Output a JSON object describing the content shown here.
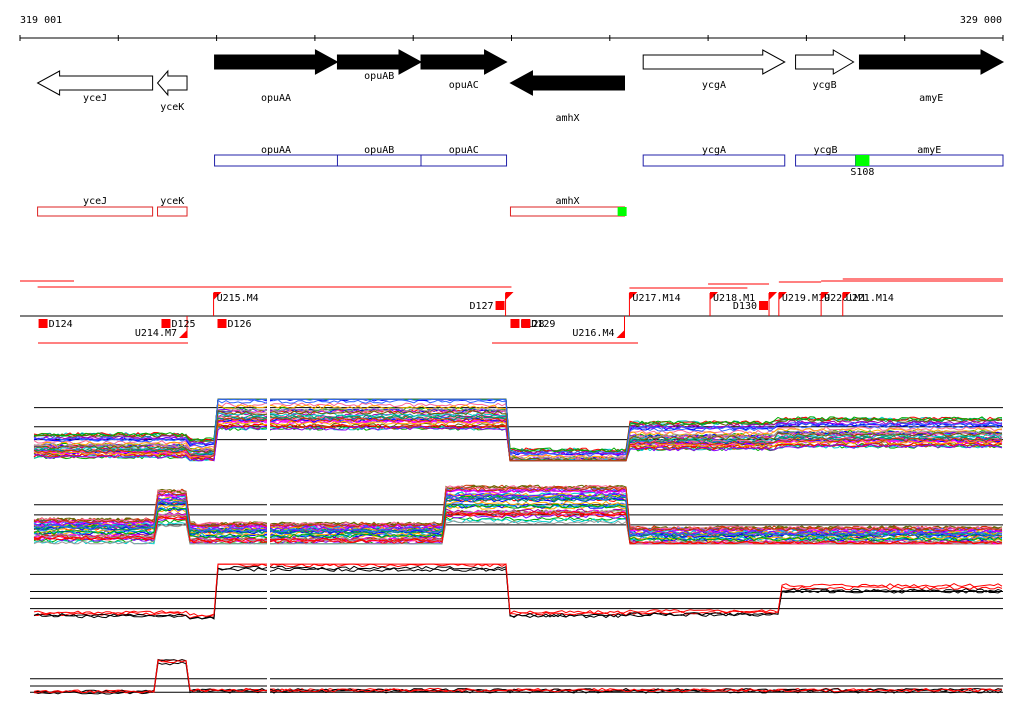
{
  "ruler": {
    "start_label": "319 001",
    "end_label": "329 000",
    "start": 319001,
    "end": 329000
  },
  "colors": {
    "promoter": "#ff0000",
    "protein": "#000000",
    "tu_blue": "#2222aa",
    "tu_red": "#dd2222",
    "terminator": "#00ff00",
    "axis": "#000000"
  },
  "genes": [
    {
      "name": "yceJ",
      "start": 319180,
      "end": 320350,
      "strand": "-",
      "fill": "open"
    },
    {
      "name": "yceK",
      "start": 320400,
      "end": 320700,
      "strand": "-",
      "fill": "open"
    },
    {
      "name": "opuAA",
      "start": 320980,
      "end": 322230,
      "strand": "+",
      "fill": "solid"
    },
    {
      "name": "opuAB",
      "start": 322230,
      "end": 323080,
      "strand": "+",
      "fill": "solid"
    },
    {
      "name": "opuAC",
      "start": 323080,
      "end": 323950,
      "strand": "+",
      "fill": "solid"
    },
    {
      "name": "amhX",
      "start": 323990,
      "end": 325150,
      "strand": "-",
      "fill": "solid"
    },
    {
      "name": "ycgA",
      "start": 325340,
      "end": 326780,
      "strand": "+",
      "fill": "open"
    },
    {
      "name": "ycgB",
      "start": 326890,
      "end": 327480,
      "strand": "+",
      "fill": "open"
    },
    {
      "name": "amyE",
      "start": 327540,
      "end": 329000,
      "strand": "+",
      "fill": "solid"
    }
  ],
  "operons_plus": [
    {
      "label_parts": [
        "opuAA",
        "opuAB",
        "opuAC"
      ],
      "start": 320980,
      "end": 323950,
      "dividers": [
        322230,
        323080
      ]
    },
    {
      "label_parts": [
        "ycgA"
      ],
      "start": 325340,
      "end": 326780,
      "dividers": []
    },
    {
      "label_parts": [
        "ycgB",
        "amyE"
      ],
      "start": 326890,
      "end": 329000,
      "dividers": [
        327500
      ],
      "terminator_at": 327570,
      "terminator_label": "S108"
    }
  ],
  "operons_minus": [
    {
      "label_parts": [
        "yceJ"
      ],
      "start": 319180,
      "end": 320350,
      "dividers": []
    },
    {
      "label_parts": [
        "yceK"
      ],
      "start": 320400,
      "end": 320700,
      "dividers": []
    },
    {
      "label_parts": [
        "amhX"
      ],
      "start": 323990,
      "end": 325150,
      "dividers": [],
      "terminator_at": 325080
    }
  ],
  "segments_plus": [
    {
      "label": "U215.M4",
      "at": 320970
    },
    {
      "label": "D127",
      "at": 323940
    },
    {
      "label": "U217.M14",
      "at": 325200
    },
    {
      "label": "U218.M1",
      "at": 326020
    },
    {
      "label": "D130",
      "at": 326620
    },
    {
      "label": "U219.M19",
      "at": 326720
    },
    {
      "label": "U220.M1",
      "at": 327150
    },
    {
      "label": "U221.M14",
      "at": 327370
    }
  ],
  "segments_minus": [
    {
      "label": "D124",
      "at": 319190
    },
    {
      "label": "U214.M7",
      "at": 320700
    },
    {
      "label": "D125",
      "at": 320440
    },
    {
      "label": "D126",
      "at": 321010
    },
    {
      "label": "D128",
      "at": 323990
    },
    {
      "label": "D129",
      "at": 324100
    },
    {
      "label": "U216.M4",
      "at": 325150
    }
  ],
  "expression_tracks": [
    {
      "kind": "multi",
      "baseline_levels": [
        0.35,
        0.55,
        0.85
      ]
    },
    {
      "kind": "multi",
      "baseline_levels": [
        0.3,
        0.45,
        0.6
      ]
    },
    {
      "kind": "pair",
      "baseline_levels": [
        0.2,
        0.38,
        0.5,
        0.8
      ]
    },
    {
      "kind": "pair",
      "baseline_levels": [
        0.12,
        0.25,
        0.4
      ]
    }
  ]
}
